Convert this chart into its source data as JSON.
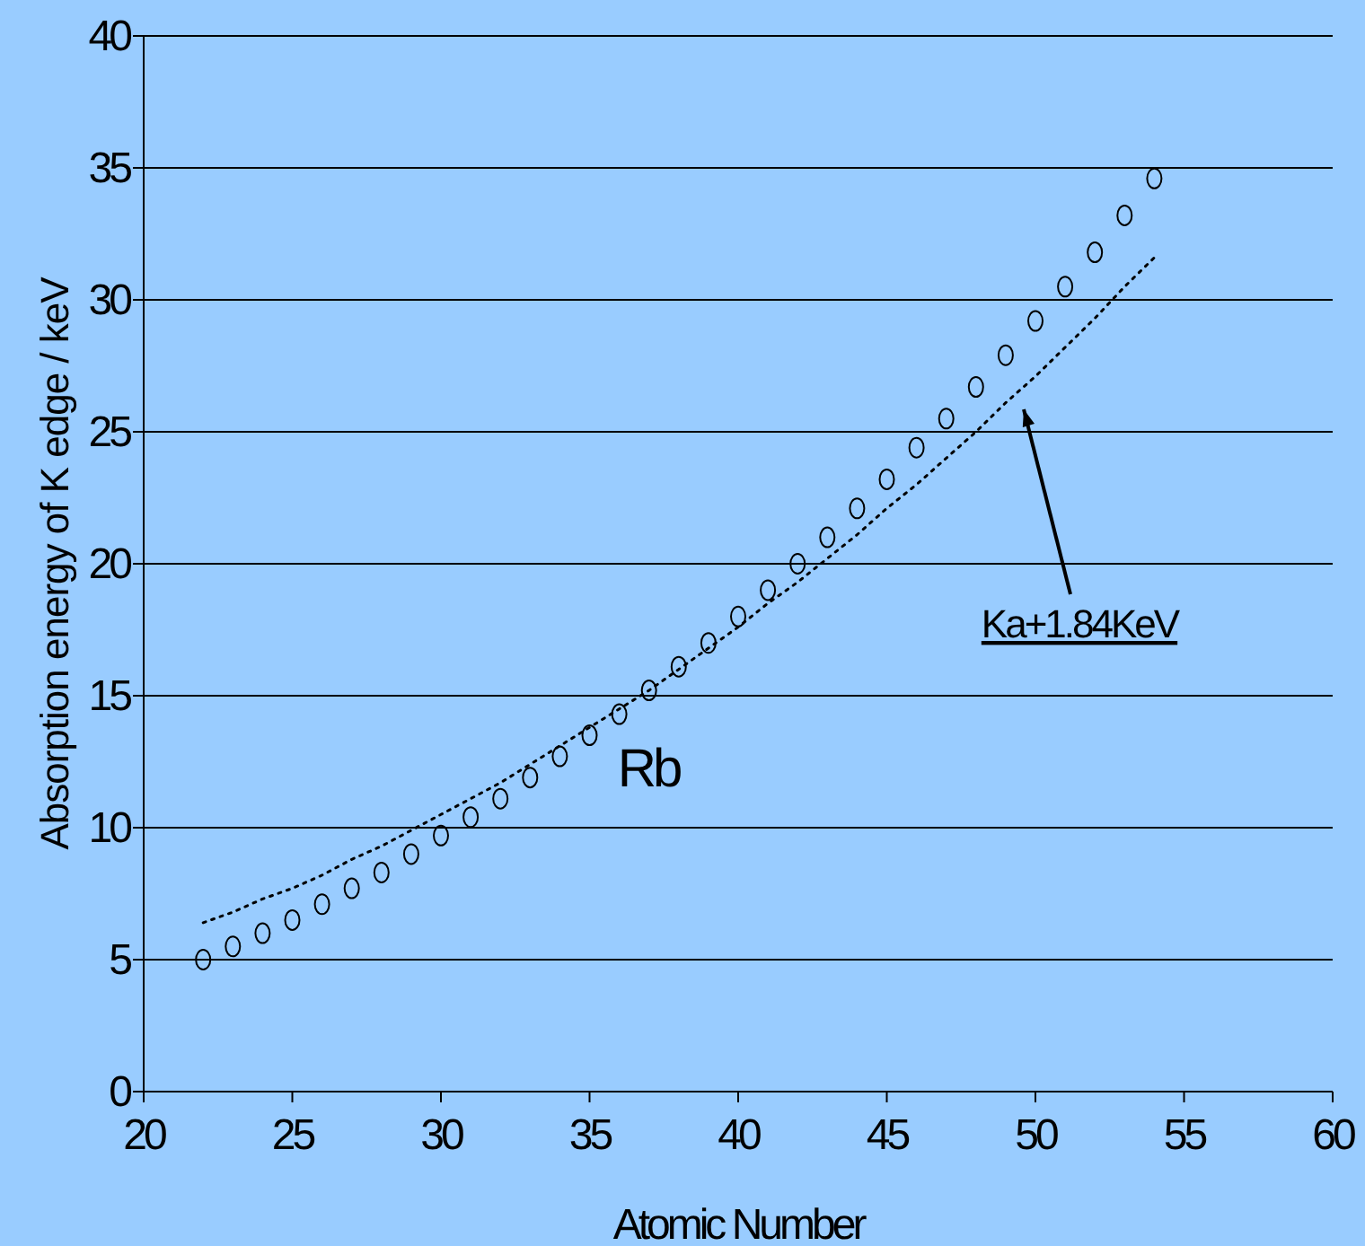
{
  "chart_data": {
    "type": "scatter",
    "xlabel": "Atomic Number",
    "ylabel": "Absorption energy of K edge / keV",
    "x": [
      22,
      23,
      24,
      25,
      26,
      27,
      28,
      29,
      30,
      31,
      32,
      33,
      34,
      35,
      36,
      37,
      38,
      39,
      40,
      41,
      42,
      43,
      44,
      45,
      46,
      47,
      48,
      49,
      50,
      51,
      52,
      53,
      54
    ],
    "series": [
      {
        "color": "#000000",
        "marker": "circle",
        "values": [
          5.0,
          5.5,
          6.0,
          6.5,
          7.1,
          7.7,
          8.3,
          9.0,
          9.7,
          10.4,
          11.1,
          11.9,
          12.7,
          13.5,
          14.3,
          15.2,
          16.1,
          17.0,
          18.0,
          19.0,
          20.0,
          21.0,
          22.1,
          23.2,
          24.4,
          25.5,
          26.7,
          27.9,
          29.2,
          30.5,
          31.8,
          33.2,
          34.6
        ]
      },
      {
        "type": "line",
        "color": "#000000",
        "marker": "none",
        "line_style": "dotted",
        "values": [
          6.4,
          6.8,
          7.3,
          7.7,
          8.2,
          8.8,
          9.3,
          9.9,
          10.5,
          11.1,
          11.7,
          12.4,
          13.1,
          13.8,
          14.5,
          15.2,
          16.0,
          16.8,
          17.6,
          18.5,
          19.3,
          20.2,
          21.1,
          22.1,
          23.0,
          24.0,
          25.0,
          26.1,
          27.1,
          28.2,
          29.3,
          30.5,
          31.6
        ]
      }
    ],
    "xlim": [
      20,
      60
    ],
    "xticks": [
      20,
      25,
      30,
      35,
      40,
      45,
      50,
      55,
      60
    ],
    "ylim": [
      0,
      40
    ],
    "yticks": [
      0,
      5,
      10,
      15,
      20,
      25,
      30,
      35,
      40
    ],
    "grid": "y",
    "annotations": [
      "Rb",
      "Ka+1.84KeV"
    ]
  }
}
